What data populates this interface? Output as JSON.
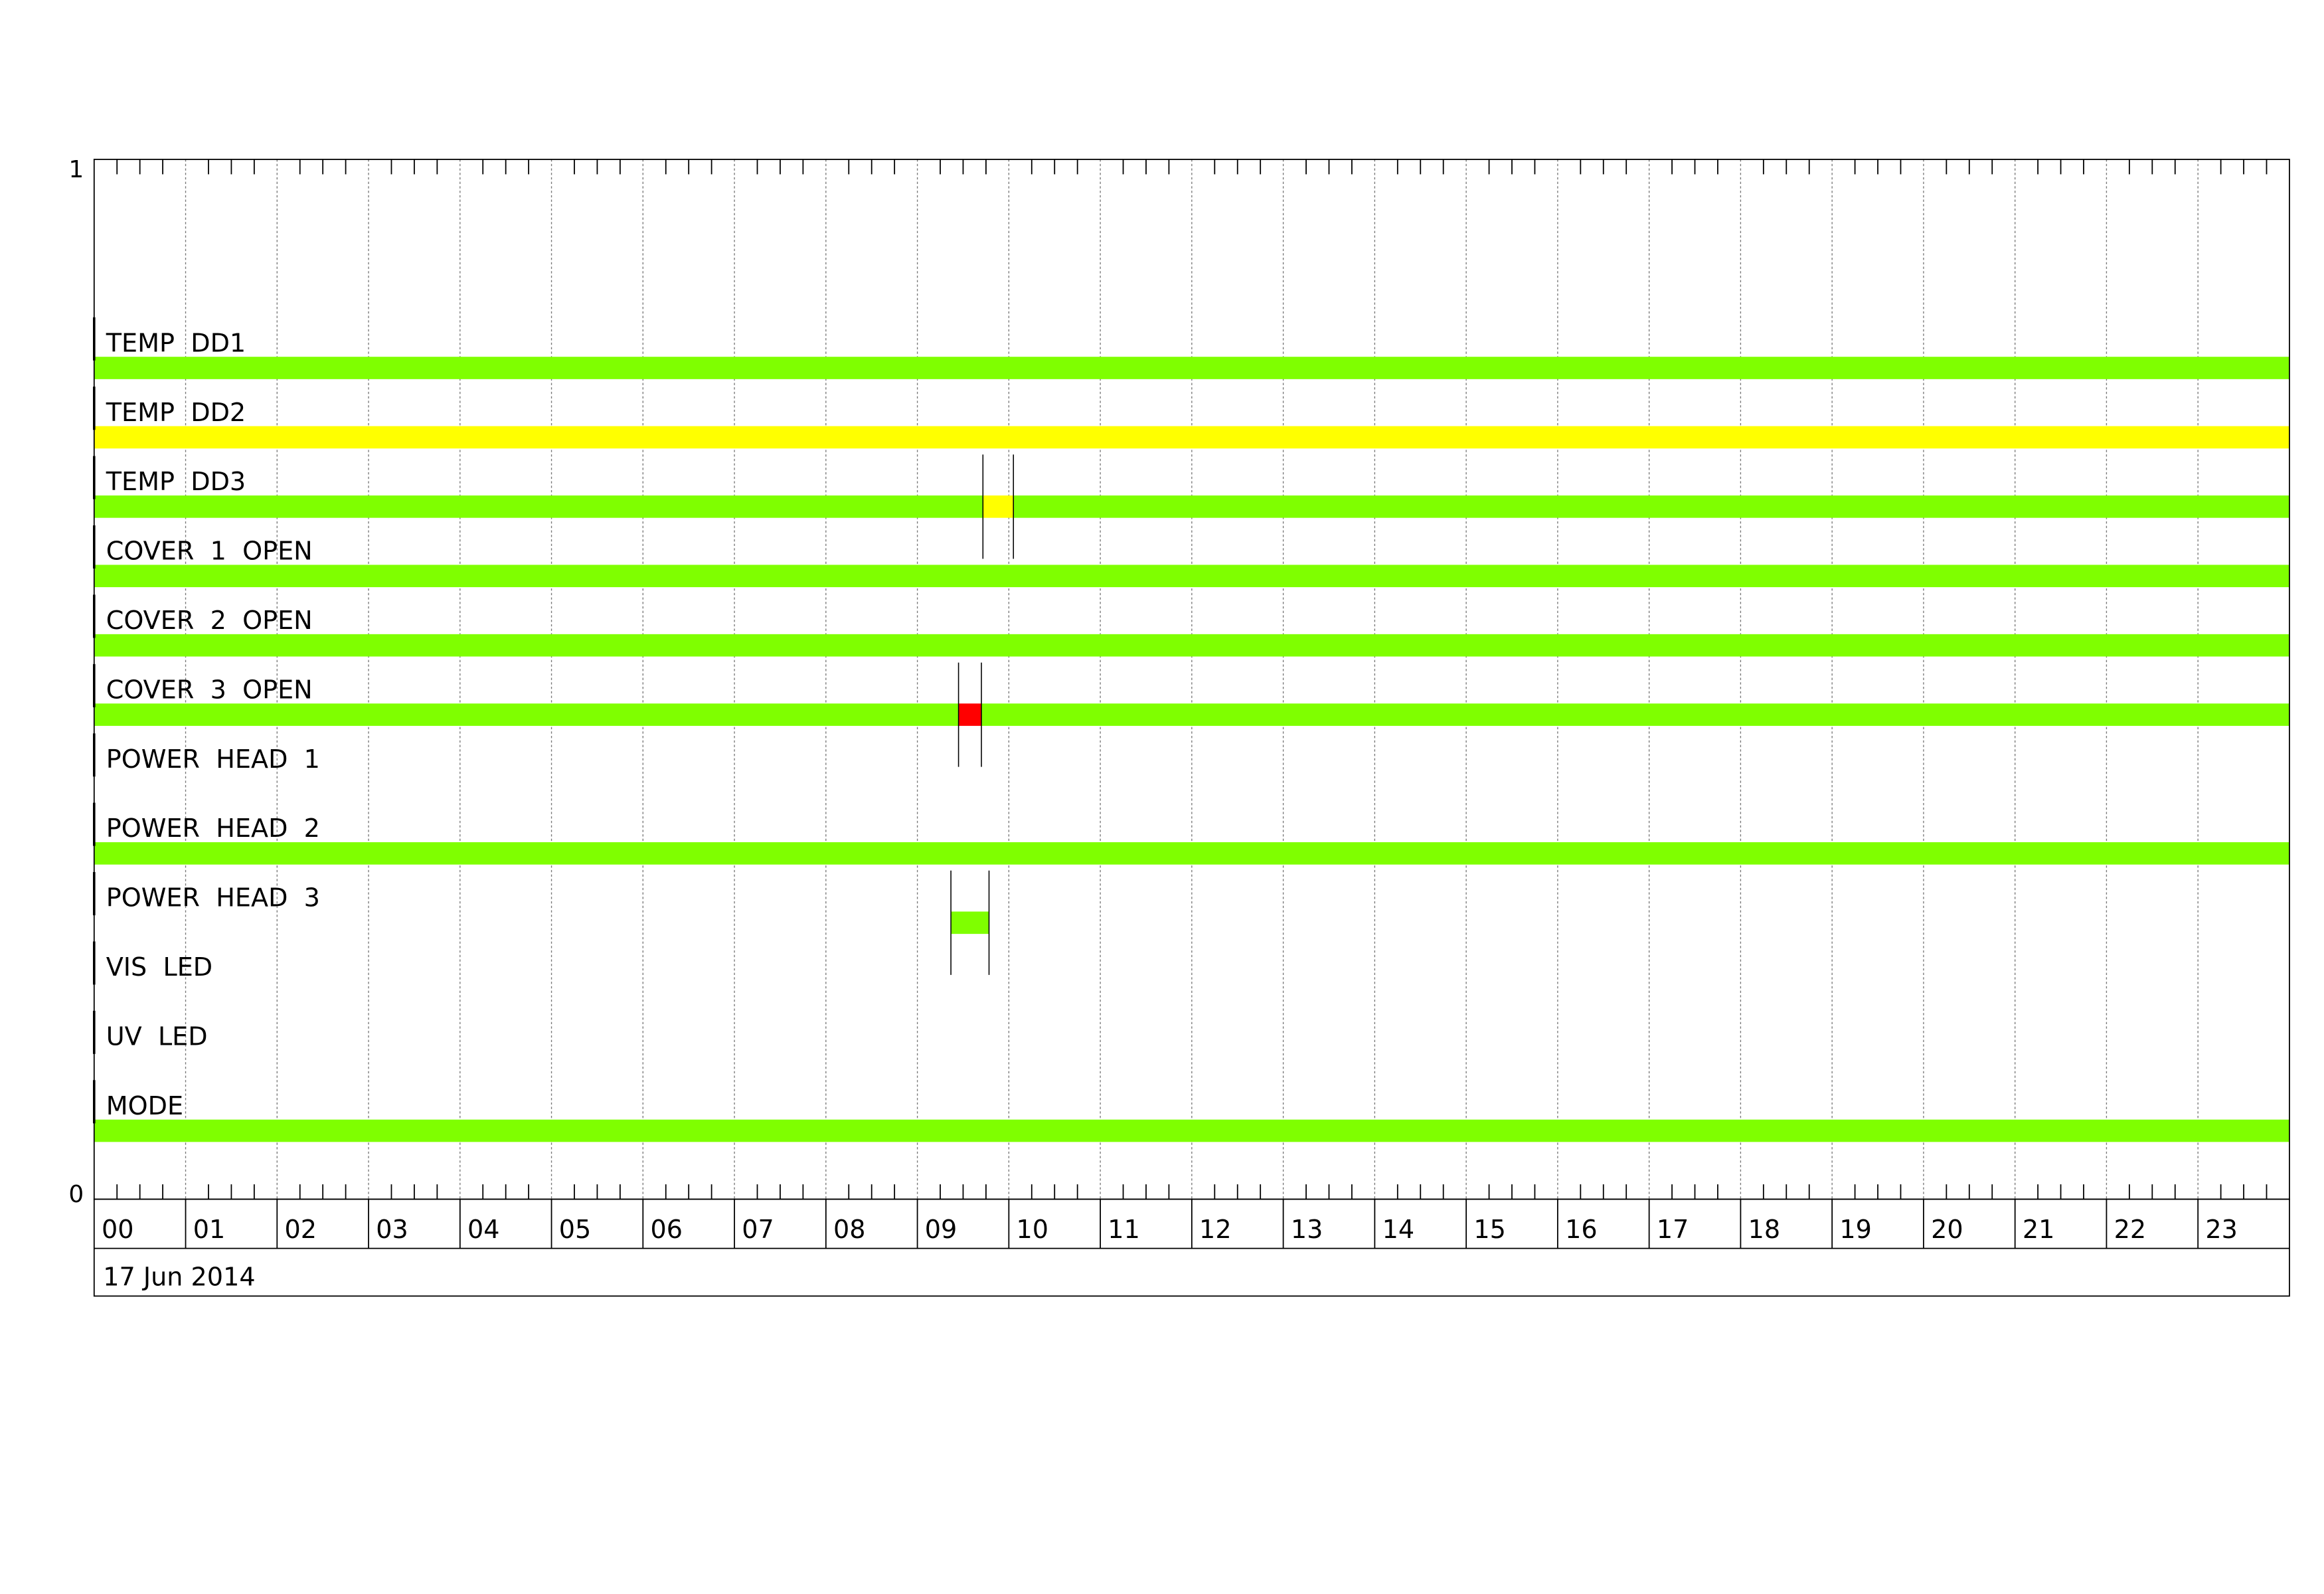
{
  "chart_data": {
    "type": "timeline",
    "title": "",
    "xlabel": "",
    "ylabel": "",
    "ylim": [
      0,
      1
    ],
    "y_tick_labels": [
      "1",
      "0"
    ],
    "x_range_hours": [
      0,
      24
    ],
    "x_tick_labels": [
      "00",
      "01",
      "02",
      "03",
      "04",
      "05",
      "06",
      "07",
      "08",
      "09",
      "10",
      "11",
      "12",
      "13",
      "14",
      "15",
      "16",
      "17",
      "18",
      "19",
      "20",
      "21",
      "22",
      "23"
    ],
    "date_label": "17 Jun 2014",
    "grid": true,
    "colors": {
      "ok": "#7FFF00",
      "warning": "#FFFF00",
      "alarm": "#FF0000"
    },
    "rows": [
      {
        "name": "TEMP  DD1",
        "segments": [
          {
            "start": "00:00",
            "end": "24:00",
            "state": "ok"
          }
        ]
      },
      {
        "name": "TEMP  DD2",
        "segments": [
          {
            "start": "00:00",
            "end": "24:00",
            "state": "warning"
          }
        ]
      },
      {
        "name": "TEMP  DD3",
        "segments": [
          {
            "start": "00:00",
            "end": "09:43",
            "state": "ok"
          },
          {
            "start": "09:43",
            "end": "10:03",
            "state": "warning"
          },
          {
            "start": "10:03",
            "end": "24:00",
            "state": "ok"
          }
        ],
        "markers": [
          "09:43",
          "10:03"
        ]
      },
      {
        "name": "COVER  1  OPEN",
        "segments": [
          {
            "start": "00:00",
            "end": "24:00",
            "state": "ok"
          }
        ]
      },
      {
        "name": "COVER  2  OPEN",
        "segments": [
          {
            "start": "00:00",
            "end": "24:00",
            "state": "ok"
          }
        ]
      },
      {
        "name": "COVER  3  OPEN",
        "segments": [
          {
            "start": "00:00",
            "end": "09:27",
            "state": "ok"
          },
          {
            "start": "09:27",
            "end": "09:42",
            "state": "alarm"
          },
          {
            "start": "09:42",
            "end": "24:00",
            "state": "ok"
          }
        ],
        "markers": [
          "09:27",
          "09:42"
        ]
      },
      {
        "name": "POWER  HEAD  1",
        "segments": []
      },
      {
        "name": "POWER  HEAD  2",
        "segments": [
          {
            "start": "00:00",
            "end": "24:00",
            "state": "ok"
          }
        ]
      },
      {
        "name": "POWER  HEAD  3",
        "segments": [
          {
            "start": "09:22",
            "end": "09:47",
            "state": "ok"
          }
        ],
        "markers": [
          "09:22",
          "09:47"
        ]
      },
      {
        "name": "VIS  LED",
        "segments": []
      },
      {
        "name": "UV  LED",
        "segments": []
      },
      {
        "name": "MODE",
        "segments": [
          {
            "start": "00:00",
            "end": "24:00",
            "state": "ok"
          }
        ]
      }
    ]
  }
}
